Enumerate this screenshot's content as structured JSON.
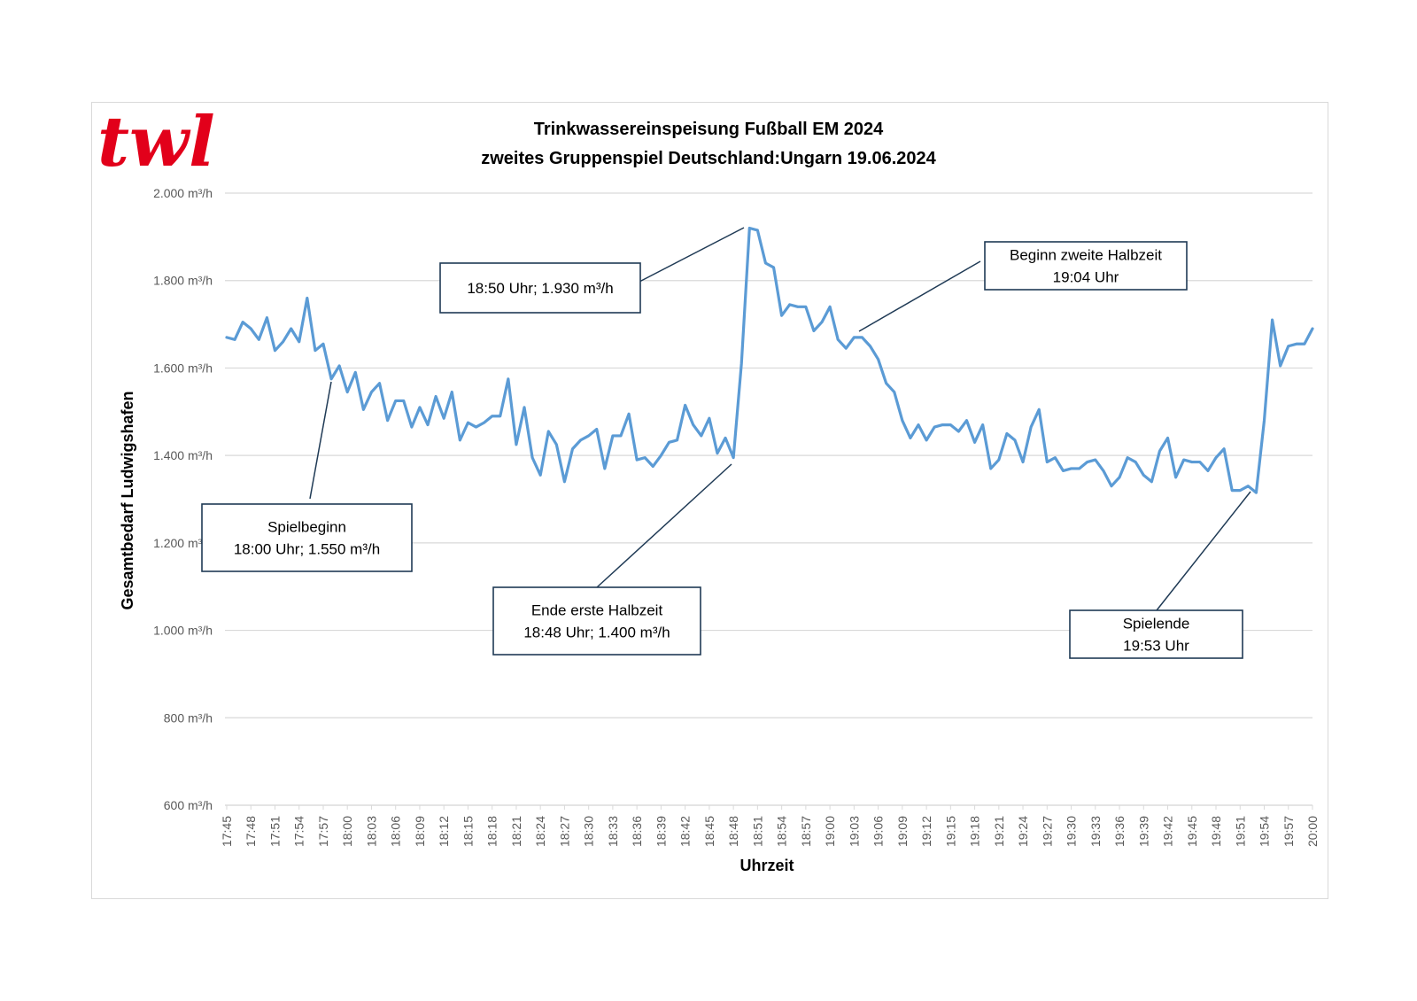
{
  "logo": {
    "text": "twl",
    "color": "#e2001a"
  },
  "chart_data": {
    "type": "line",
    "title": [
      "Trinkwassereinspeisung Fußball EM 2024",
      "zweites Gruppenspiel Deutschland:Ungarn 19.06.2024"
    ],
    "xlabel": "Uhrzeit",
    "ylabel": "Gesamtbedarf Ludwigshafen",
    "ylim": [
      600,
      2000
    ],
    "yticks": [
      600,
      800,
      1000,
      1200,
      1400,
      1600,
      1800,
      2000
    ],
    "ytick_labels": [
      "600 m³/h",
      "800 m³/h",
      "1.000 m³/h",
      "1.200 m³/h",
      "1.400 m³/h",
      "1.600 m³/h",
      "1.800 m³/h",
      "2.000 m³/h"
    ],
    "x_start": "17:45",
    "x_end": "20:00",
    "x_tick_labels": [
      "17:45",
      "17:48",
      "17:51",
      "17:54",
      "17:57",
      "18:00",
      "18:03",
      "18:06",
      "18:09",
      "18:12",
      "18:15",
      "18:18",
      "18:21",
      "18:24",
      "18:27",
      "18:30",
      "18:33",
      "18:36",
      "18:39",
      "18:42",
      "18:45",
      "18:48",
      "18:51",
      "18:54",
      "18:57",
      "19:00",
      "19:03",
      "19:06",
      "19:09",
      "19:12",
      "19:15",
      "19:18",
      "19:21",
      "19:24",
      "19:27",
      "19:30",
      "19:33",
      "19:36",
      "19:39",
      "19:42",
      "19:45",
      "19:48",
      "19:51",
      "19:54",
      "19:57",
      "20:00"
    ],
    "grid": true,
    "line_color": "#5b9bd5",
    "series": [
      {
        "name": "Gesamtbedarf",
        "x_minutes_from_start": [
          0,
          1,
          2,
          3,
          4,
          5,
          6,
          7,
          8,
          9,
          10,
          11,
          12,
          13,
          14,
          15,
          16,
          17,
          18,
          19,
          20,
          21,
          22,
          23,
          24,
          25,
          26,
          27,
          28,
          29,
          30,
          31,
          32,
          33,
          34,
          35,
          36,
          37,
          38,
          39,
          40,
          41,
          42,
          43,
          44,
          45,
          46,
          47,
          48,
          49,
          50,
          51,
          52,
          53,
          54,
          55,
          56,
          57,
          58,
          59,
          60,
          61,
          62,
          63,
          64,
          65,
          66,
          67,
          68,
          69,
          70,
          71,
          72,
          73,
          74,
          75,
          76,
          77,
          78,
          79,
          80,
          81,
          82,
          83,
          84,
          85,
          86,
          87,
          88,
          89,
          90,
          91,
          92,
          93,
          94,
          95,
          96,
          97,
          98,
          99,
          100,
          101,
          102,
          103,
          104,
          105,
          106,
          107,
          108,
          109,
          110,
          111,
          112,
          113,
          114,
          115,
          116,
          117,
          118,
          119,
          120,
          121,
          122,
          123,
          124,
          125,
          126,
          127,
          128,
          129,
          130,
          131,
          132,
          133,
          134,
          135
        ],
        "values": [
          1670,
          1665,
          1705,
          1690,
          1665,
          1715,
          1640,
          1660,
          1690,
          1660,
          1760,
          1640,
          1655,
          1575,
          1605,
          1545,
          1590,
          1505,
          1545,
          1565,
          1480,
          1525,
          1525,
          1465,
          1510,
          1470,
          1535,
          1485,
          1545,
          1435,
          1475,
          1465,
          1475,
          1490,
          1490,
          1575,
          1425,
          1510,
          1395,
          1355,
          1455,
          1425,
          1340,
          1415,
          1435,
          1445,
          1460,
          1370,
          1445,
          1445,
          1495,
          1390,
          1395,
          1375,
          1400,
          1430,
          1435,
          1515,
          1470,
          1445,
          1485,
          1405,
          1440,
          1395,
          1610,
          1920,
          1915,
          1840,
          1830,
          1720,
          1745,
          1740,
          1740,
          1685,
          1705,
          1740,
          1665,
          1645,
          1670,
          1670,
          1650,
          1620,
          1565,
          1545,
          1480,
          1440,
          1470,
          1435,
          1465,
          1470,
          1470,
          1455,
          1480,
          1430,
          1470,
          1370,
          1390,
          1450,
          1435,
          1385,
          1465,
          1505,
          1385,
          1395,
          1365,
          1370,
          1370,
          1385,
          1390,
          1365,
          1330,
          1350,
          1395,
          1385,
          1355,
          1340,
          1410,
          1440,
          1350,
          1390,
          1385,
          1385,
          1365,
          1395,
          1415,
          1320,
          1320,
          1330,
          1315,
          1480,
          1710,
          1605,
          1650,
          1655,
          1655,
          1690
        ]
      }
    ],
    "annotations": [
      {
        "lines": [
          "Spielbeginn",
          "18:00 Uhr; 1.550 m³/h"
        ],
        "time": "18:00",
        "value": 1550
      },
      {
        "lines": [
          "18:50 Uhr; 1.930 m³/h"
        ],
        "time": "18:50",
        "value": 1930
      },
      {
        "lines": [
          "Ende erste Halbzeit",
          "18:48 Uhr; 1.400 m³/h"
        ],
        "time": "18:48",
        "value": 1400
      },
      {
        "lines": [
          "Beginn zweite Halbzeit",
          "19:04 Uhr"
        ],
        "time": "19:04"
      },
      {
        "lines": [
          "Spielende",
          "19:53 Uhr"
        ],
        "time": "19:53"
      }
    ]
  }
}
